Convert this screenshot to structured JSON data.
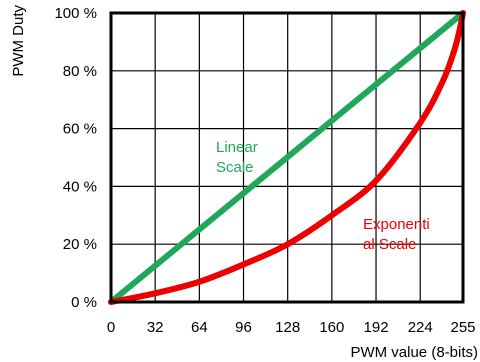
{
  "chart_data": {
    "type": "line",
    "xlabel": "PWM value (8-bits)",
    "ylabel": "PWM Duty",
    "xlim": [
      0,
      255
    ],
    "ylim": [
      0,
      100
    ],
    "x_ticks": [
      0,
      32,
      64,
      96,
      128,
      160,
      192,
      224,
      255
    ],
    "x_tick_labels": [
      "0",
      "32",
      "64",
      "96",
      "128",
      "160",
      "192",
      "224",
      "255"
    ],
    "y_ticks": [
      0,
      20,
      40,
      60,
      80,
      100
    ],
    "y_tick_labels": [
      "0 %",
      "20 %",
      "40 %",
      "60 %",
      "80 %",
      "100 %"
    ],
    "grid": true,
    "series": [
      {
        "color": "#1fa85a",
        "x": [
          0,
          255
        ],
        "y": [
          0,
          100
        ]
      },
      {
        "color": "#ee0000",
        "x": [
          0,
          32,
          64,
          96,
          128,
          160,
          192,
          224,
          240,
          248,
          252,
          255
        ],
        "y": [
          0,
          3,
          7,
          13,
          20,
          30,
          42,
          62,
          76,
          86,
          93,
          100
        ]
      }
    ],
    "annotations": [
      {
        "lines": [
          "Linear",
          "Scale"
        ],
        "color": "#1fa85a"
      },
      {
        "lines": [
          "Exponenti",
          "al Scale"
        ],
        "color": "#ee0000"
      }
    ]
  }
}
